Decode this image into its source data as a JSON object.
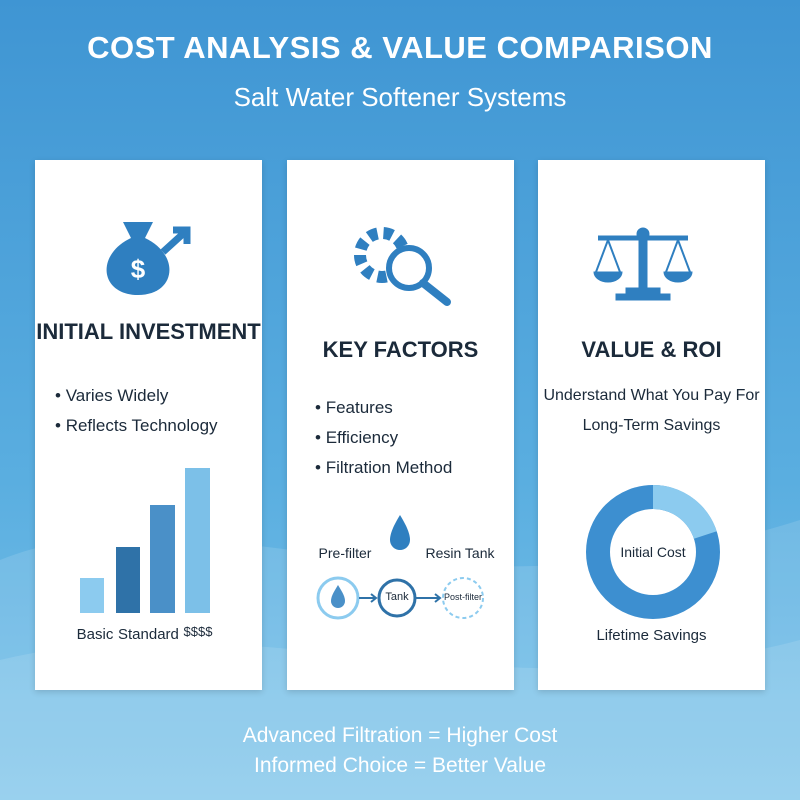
{
  "header": {
    "title": "COST ANALYSIS & VALUE COMPARISON",
    "subtitle": "Salt Water Softener Systems"
  },
  "cards": [
    {
      "heading": "INITIAL INVESTMENT",
      "bullets": [
        "Varies Widely",
        "Reflects Technology"
      ],
      "chart_labels": [
        "Basic",
        "Standard",
        "$$$$"
      ]
    },
    {
      "heading": "KEY FACTORS",
      "bullets": [
        "Features",
        "Efficiency",
        "Filtration Method"
      ],
      "flow_labels": [
        "Pre-filter",
        "Resin Tank",
        "Tank",
        "Post-filter"
      ]
    },
    {
      "heading": "VALUE & ROI",
      "lines": [
        "Understand What You Pay For",
        "Long-Term Savings"
      ],
      "donut_labels": [
        "Initial Cost",
        "Lifetime Savings"
      ]
    }
  ],
  "footer": [
    "Advanced Filtration = Higher Cost",
    "Informed Choice = Better Value"
  ]
}
